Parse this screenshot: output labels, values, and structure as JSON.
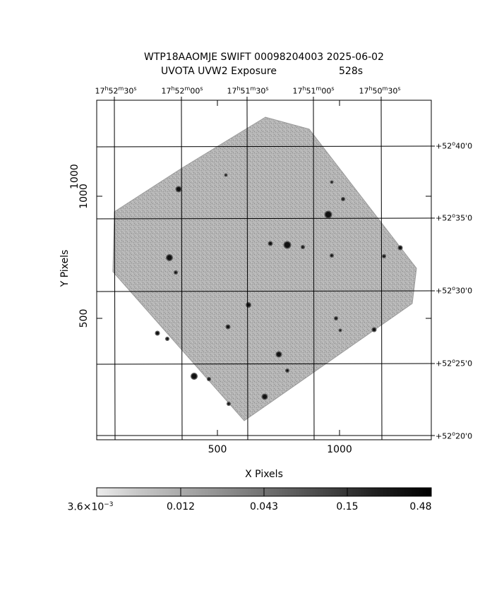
{
  "header": {
    "line1": "WTP18AAOMJE SWIFT 00098204003 2025-06-02",
    "line2_instrument": "UVOTA UVW2 Exposure",
    "line2_exposure": "528s"
  },
  "axes": {
    "xlabel": "X Pixels",
    "ylabel": "Y Pixels",
    "x_ticks": [
      "500",
      "1000"
    ],
    "y_ticks": [
      "1000",
      "500"
    ]
  },
  "ra_labels": [
    {
      "h": "17",
      "m": "52",
      "s": "30"
    },
    {
      "h": "17",
      "m": "52",
      "s": "00"
    },
    {
      "h": "17",
      "m": "51",
      "s": "30"
    },
    {
      "h": "17",
      "m": "51",
      "s": "00"
    },
    {
      "h": "17",
      "m": "50",
      "s": "30"
    }
  ],
  "dec_labels": [
    {
      "d": "+52",
      "m": "40"
    },
    {
      "d": "+52",
      "m": "35"
    },
    {
      "d": "+52",
      "m": "30"
    },
    {
      "d": "+52",
      "m": "25"
    },
    {
      "d": "+52",
      "m": "20"
    }
  ],
  "colorbar": {
    "labels": [
      "3.6×10",
      "0.012",
      "0.043",
      "0.15",
      "0.48"
    ],
    "first_exponent": "−3",
    "gradient_from": "#e8e8e8",
    "gradient_to": "#000000"
  },
  "image": {
    "sky_color": "#a9a9a9",
    "grid_color": "#000000"
  }
}
